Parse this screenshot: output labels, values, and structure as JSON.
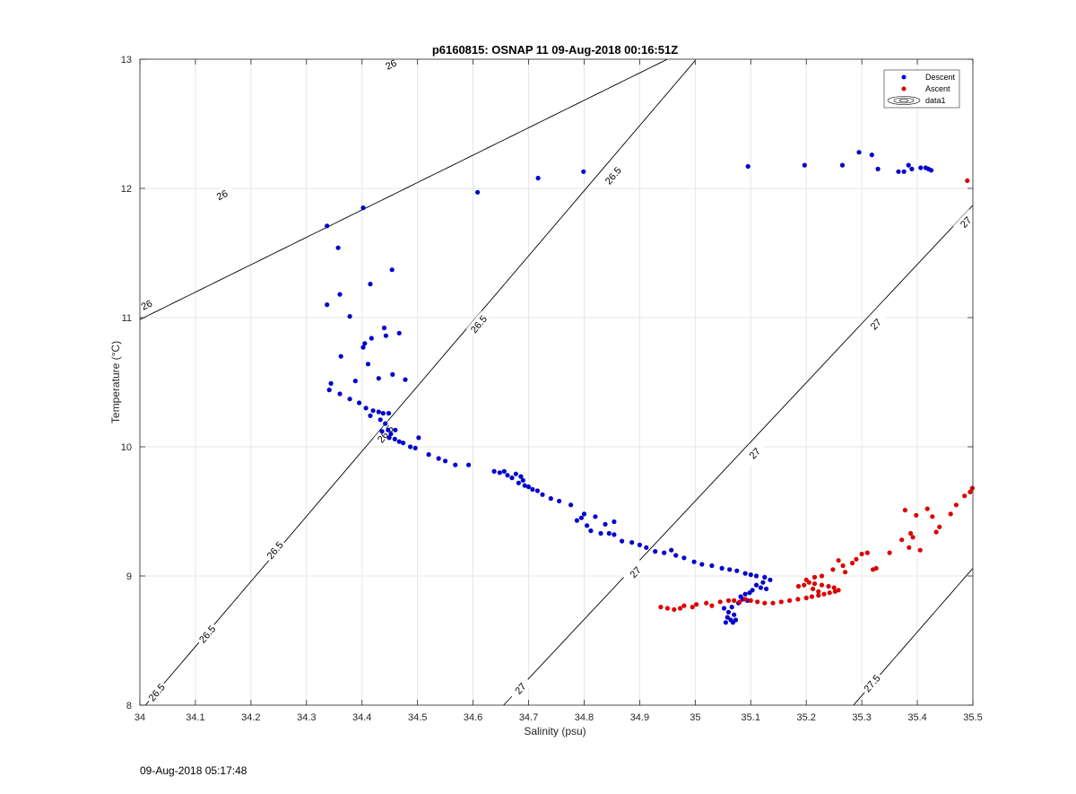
{
  "figure": {
    "timestamp": "09-Aug-2018 05:17:48"
  },
  "chart_data": {
    "type": "scatter",
    "title": "p6160815: OSNAP 11 09-Aug-2018 00:16:51Z",
    "xlabel": "Salinity (psu)",
    "ylabel": "Temperature (°C)",
    "xlim": [
      34,
      35.5
    ],
    "ylim": [
      8,
      13
    ],
    "xticks": [
      "34",
      "34.1",
      "34.2",
      "34.3",
      "34.4",
      "34.5",
      "34.6",
      "34.7",
      "34.8",
      "34.9",
      "35",
      "35.1",
      "35.2",
      "35.3",
      "35.4",
      "35.5"
    ],
    "yticks": [
      "8",
      "9",
      "10",
      "11",
      "12",
      "13"
    ],
    "grid": true,
    "legend_position": "top-right",
    "legend": [
      "Descent",
      "Ascent",
      "data1"
    ],
    "colors": {
      "Descent": "#0000cc",
      "Ascent": "#dd0000",
      "contour": "#000000"
    },
    "series": [
      {
        "name": "Descent",
        "points": [
          [
            34.337,
            11.71
          ],
          [
            34.357,
            11.54
          ],
          [
            34.402,
            11.85
          ],
          [
            34.454,
            11.37
          ],
          [
            34.415,
            11.26
          ],
          [
            34.337,
            11.1
          ],
          [
            34.36,
            11.18
          ],
          [
            34.378,
            11.01
          ],
          [
            34.405,
            10.8
          ],
          [
            34.417,
            10.84
          ],
          [
            34.44,
            10.92
          ],
          [
            34.467,
            10.88
          ],
          [
            34.443,
            10.86
          ],
          [
            34.402,
            10.77
          ],
          [
            34.362,
            10.7
          ],
          [
            34.388,
            10.51
          ],
          [
            34.411,
            10.64
          ],
          [
            34.43,
            10.53
          ],
          [
            34.455,
            10.56
          ],
          [
            34.478,
            10.52
          ],
          [
            34.344,
            10.49
          ],
          [
            34.341,
            10.44
          ],
          [
            34.36,
            10.41
          ],
          [
            34.378,
            10.37
          ],
          [
            34.395,
            10.34
          ],
          [
            34.407,
            10.3
          ],
          [
            34.415,
            10.24
          ],
          [
            34.42,
            10.28
          ],
          [
            34.43,
            10.27
          ],
          [
            34.438,
            10.26
          ],
          [
            34.448,
            10.26
          ],
          [
            34.433,
            10.21
          ],
          [
            34.442,
            10.18
          ],
          [
            34.447,
            10.13
          ],
          [
            34.436,
            10.12
          ],
          [
            34.452,
            10.1
          ],
          [
            34.46,
            10.13
          ],
          [
            34.449,
            10.07
          ],
          [
            34.459,
            10.06
          ],
          [
            34.467,
            10.04
          ],
          [
            34.474,
            10.03
          ],
          [
            34.487,
            10.0
          ],
          [
            34.496,
            9.99
          ],
          [
            34.502,
            10.07
          ],
          [
            34.52,
            9.94
          ],
          [
            34.538,
            9.91
          ],
          [
            34.55,
            9.89
          ],
          [
            34.568,
            9.86
          ],
          [
            34.592,
            9.86
          ],
          [
            34.638,
            9.81
          ],
          [
            34.648,
            9.8
          ],
          [
            34.656,
            9.81
          ],
          [
            34.662,
            9.78
          ],
          [
            34.67,
            9.76
          ],
          [
            34.677,
            9.79
          ],
          [
            34.686,
            9.77
          ],
          [
            34.69,
            9.74
          ],
          [
            34.682,
            9.72
          ],
          [
            34.693,
            9.7
          ],
          [
            34.7,
            9.69
          ],
          [
            34.707,
            9.67
          ],
          [
            34.716,
            9.66
          ],
          [
            34.725,
            9.63
          ],
          [
            34.74,
            9.6
          ],
          [
            34.755,
            9.58
          ],
          [
            34.776,
            9.55
          ],
          [
            34.787,
            9.43
          ],
          [
            34.795,
            9.45
          ],
          [
            34.8,
            9.48
          ],
          [
            34.805,
            9.39
          ],
          [
            34.812,
            9.35
          ],
          [
            34.82,
            9.46
          ],
          [
            34.83,
            9.33
          ],
          [
            34.838,
            9.4
          ],
          [
            34.845,
            9.33
          ],
          [
            34.854,
            9.42
          ],
          [
            34.854,
            9.32
          ],
          [
            34.868,
            9.27
          ],
          [
            34.886,
            9.26
          ],
          [
            34.9,
            9.24
          ],
          [
            34.912,
            9.22
          ],
          [
            34.928,
            9.19
          ],
          [
            34.944,
            9.18
          ],
          [
            34.957,
            9.2
          ],
          [
            34.965,
            9.16
          ],
          [
            34.98,
            9.14
          ],
          [
            34.998,
            9.11
          ],
          [
            35.012,
            9.09
          ],
          [
            35.03,
            9.08
          ],
          [
            35.048,
            9.06
          ],
          [
            35.062,
            9.05
          ],
          [
            35.075,
            9.04
          ],
          [
            35.09,
            9.02
          ],
          [
            35.1,
            9.01
          ],
          [
            35.11,
            9.0
          ],
          [
            35.125,
            8.99
          ],
          [
            35.135,
            8.97
          ],
          [
            35.122,
            8.95
          ],
          [
            35.11,
            8.93
          ],
          [
            35.118,
            8.91
          ],
          [
            35.128,
            8.9
          ],
          [
            35.103,
            8.89
          ],
          [
            35.098,
            8.87
          ],
          [
            35.09,
            8.86
          ],
          [
            35.082,
            8.84
          ],
          [
            35.086,
            8.82
          ],
          [
            35.094,
            8.81
          ],
          [
            35.078,
            8.79
          ],
          [
            35.066,
            8.76
          ],
          [
            35.052,
            8.75
          ],
          [
            35.06,
            8.72
          ],
          [
            35.07,
            8.7
          ],
          [
            35.058,
            8.68
          ],
          [
            35.064,
            8.66
          ],
          [
            35.055,
            8.64
          ],
          [
            35.068,
            8.64
          ],
          [
            35.073,
            8.66
          ],
          [
            34.608,
            11.97
          ],
          [
            34.717,
            12.08
          ],
          [
            34.799,
            12.13
          ],
          [
            35.095,
            12.17
          ],
          [
            35.197,
            12.18
          ],
          [
            35.265,
            12.18
          ],
          [
            35.295,
            12.28
          ],
          [
            35.318,
            12.26
          ],
          [
            35.329,
            12.15
          ],
          [
            35.366,
            12.13
          ],
          [
            35.376,
            12.13
          ],
          [
            35.384,
            12.18
          ],
          [
            35.39,
            12.15
          ],
          [
            35.406,
            12.16
          ],
          [
            35.415,
            12.16
          ],
          [
            35.42,
            12.15
          ],
          [
            35.425,
            12.14
          ]
        ]
      },
      {
        "name": "Ascent",
        "points": [
          [
            34.938,
            8.76
          ],
          [
            34.95,
            8.75
          ],
          [
            34.962,
            8.74
          ],
          [
            34.973,
            8.75
          ],
          [
            34.98,
            8.77
          ],
          [
            34.995,
            8.76
          ],
          [
            35.002,
            8.78
          ],
          [
            35.02,
            8.79
          ],
          [
            35.03,
            8.77
          ],
          [
            35.045,
            8.8
          ],
          [
            35.06,
            8.81
          ],
          [
            35.07,
            8.81
          ],
          [
            35.08,
            8.8
          ],
          [
            35.09,
            8.82
          ],
          [
            35.1,
            8.81
          ],
          [
            35.112,
            8.8
          ],
          [
            35.125,
            8.79
          ],
          [
            35.14,
            8.79
          ],
          [
            35.155,
            8.8
          ],
          [
            35.17,
            8.81
          ],
          [
            35.185,
            8.82
          ],
          [
            35.2,
            8.83
          ],
          [
            35.21,
            8.84
          ],
          [
            35.222,
            8.85
          ],
          [
            35.232,
            8.86
          ],
          [
            35.242,
            8.87
          ],
          [
            35.252,
            8.88
          ],
          [
            35.258,
            8.89
          ],
          [
            35.25,
            8.91
          ],
          [
            35.24,
            8.92
          ],
          [
            35.228,
            8.93
          ],
          [
            35.215,
            8.94
          ],
          [
            35.205,
            8.95
          ],
          [
            35.196,
            8.93
          ],
          [
            35.186,
            8.92
          ],
          [
            35.2,
            8.97
          ],
          [
            35.215,
            8.99
          ],
          [
            35.228,
            9.0
          ],
          [
            35.212,
            8.9
          ],
          [
            35.222,
            8.88
          ],
          [
            35.248,
            9.05
          ],
          [
            35.258,
            9.12
          ],
          [
            35.266,
            9.08
          ],
          [
            35.27,
            9.03
          ],
          [
            35.283,
            9.1
          ],
          [
            35.29,
            9.13
          ],
          [
            35.3,
            9.17
          ],
          [
            35.31,
            9.18
          ],
          [
            35.32,
            9.05
          ],
          [
            35.326,
            9.06
          ],
          [
            35.35,
            9.18
          ],
          [
            35.372,
            9.28
          ],
          [
            35.378,
            9.51
          ],
          [
            35.385,
            9.22
          ],
          [
            35.388,
            9.33
          ],
          [
            35.392,
            9.3
          ],
          [
            35.398,
            9.47
          ],
          [
            35.405,
            9.2
          ],
          [
            35.418,
            9.52
          ],
          [
            35.427,
            9.46
          ],
          [
            35.434,
            9.34
          ],
          [
            35.44,
            9.38
          ],
          [
            35.46,
            9.48
          ],
          [
            35.47,
            9.55
          ],
          [
            35.485,
            9.62
          ],
          [
            35.495,
            9.65
          ],
          [
            35.499,
            9.68
          ],
          [
            35.49,
            12.06
          ]
        ]
      }
    ],
    "contours": [
      {
        "level": "26",
        "labels": [
          "26",
          "26",
          "26"
        ]
      },
      {
        "level": "26.5",
        "labels": [
          "26.5",
          "26.5",
          "26.5",
          "26.5",
          "26.5",
          "26.5"
        ]
      },
      {
        "level": "27",
        "labels": [
          "27",
          "27",
          "27",
          "27",
          "27"
        ]
      },
      {
        "level": "27.5",
        "labels": [
          "27.5"
        ]
      }
    ]
  }
}
